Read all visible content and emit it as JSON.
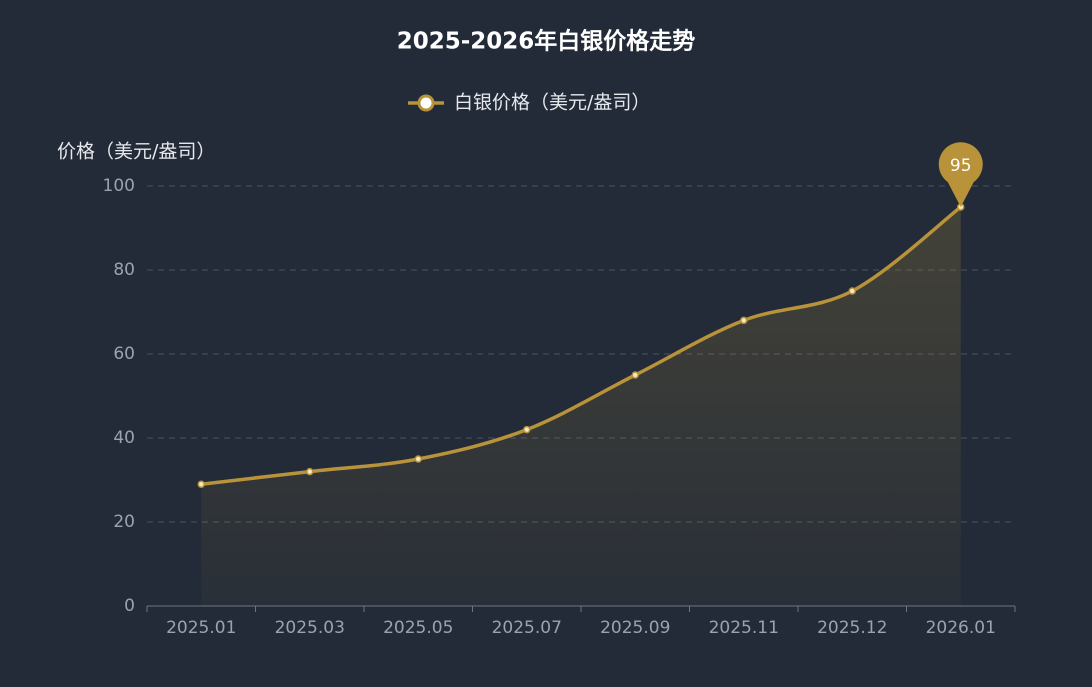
{
  "chart_data": {
    "type": "line",
    "title": "2025-2026年白银价格走势",
    "y_axis_label": "价格（美元/盎司）",
    "categories": [
      "2025.01",
      "2025.03",
      "2025.05",
      "2025.07",
      "2025.09",
      "2025.11",
      "2025.12",
      "2026.01"
    ],
    "series": [
      {
        "name": "白银价格（美元/盎司）",
        "color": "#b8933a",
        "values": [
          29,
          32,
          35,
          42,
          55,
          68,
          75,
          95
        ]
      }
    ],
    "ylim": [
      0,
      100
    ],
    "yticks": [
      0,
      20,
      40,
      60,
      80,
      100
    ],
    "grid": true,
    "smooth": true,
    "area": true
  }
}
